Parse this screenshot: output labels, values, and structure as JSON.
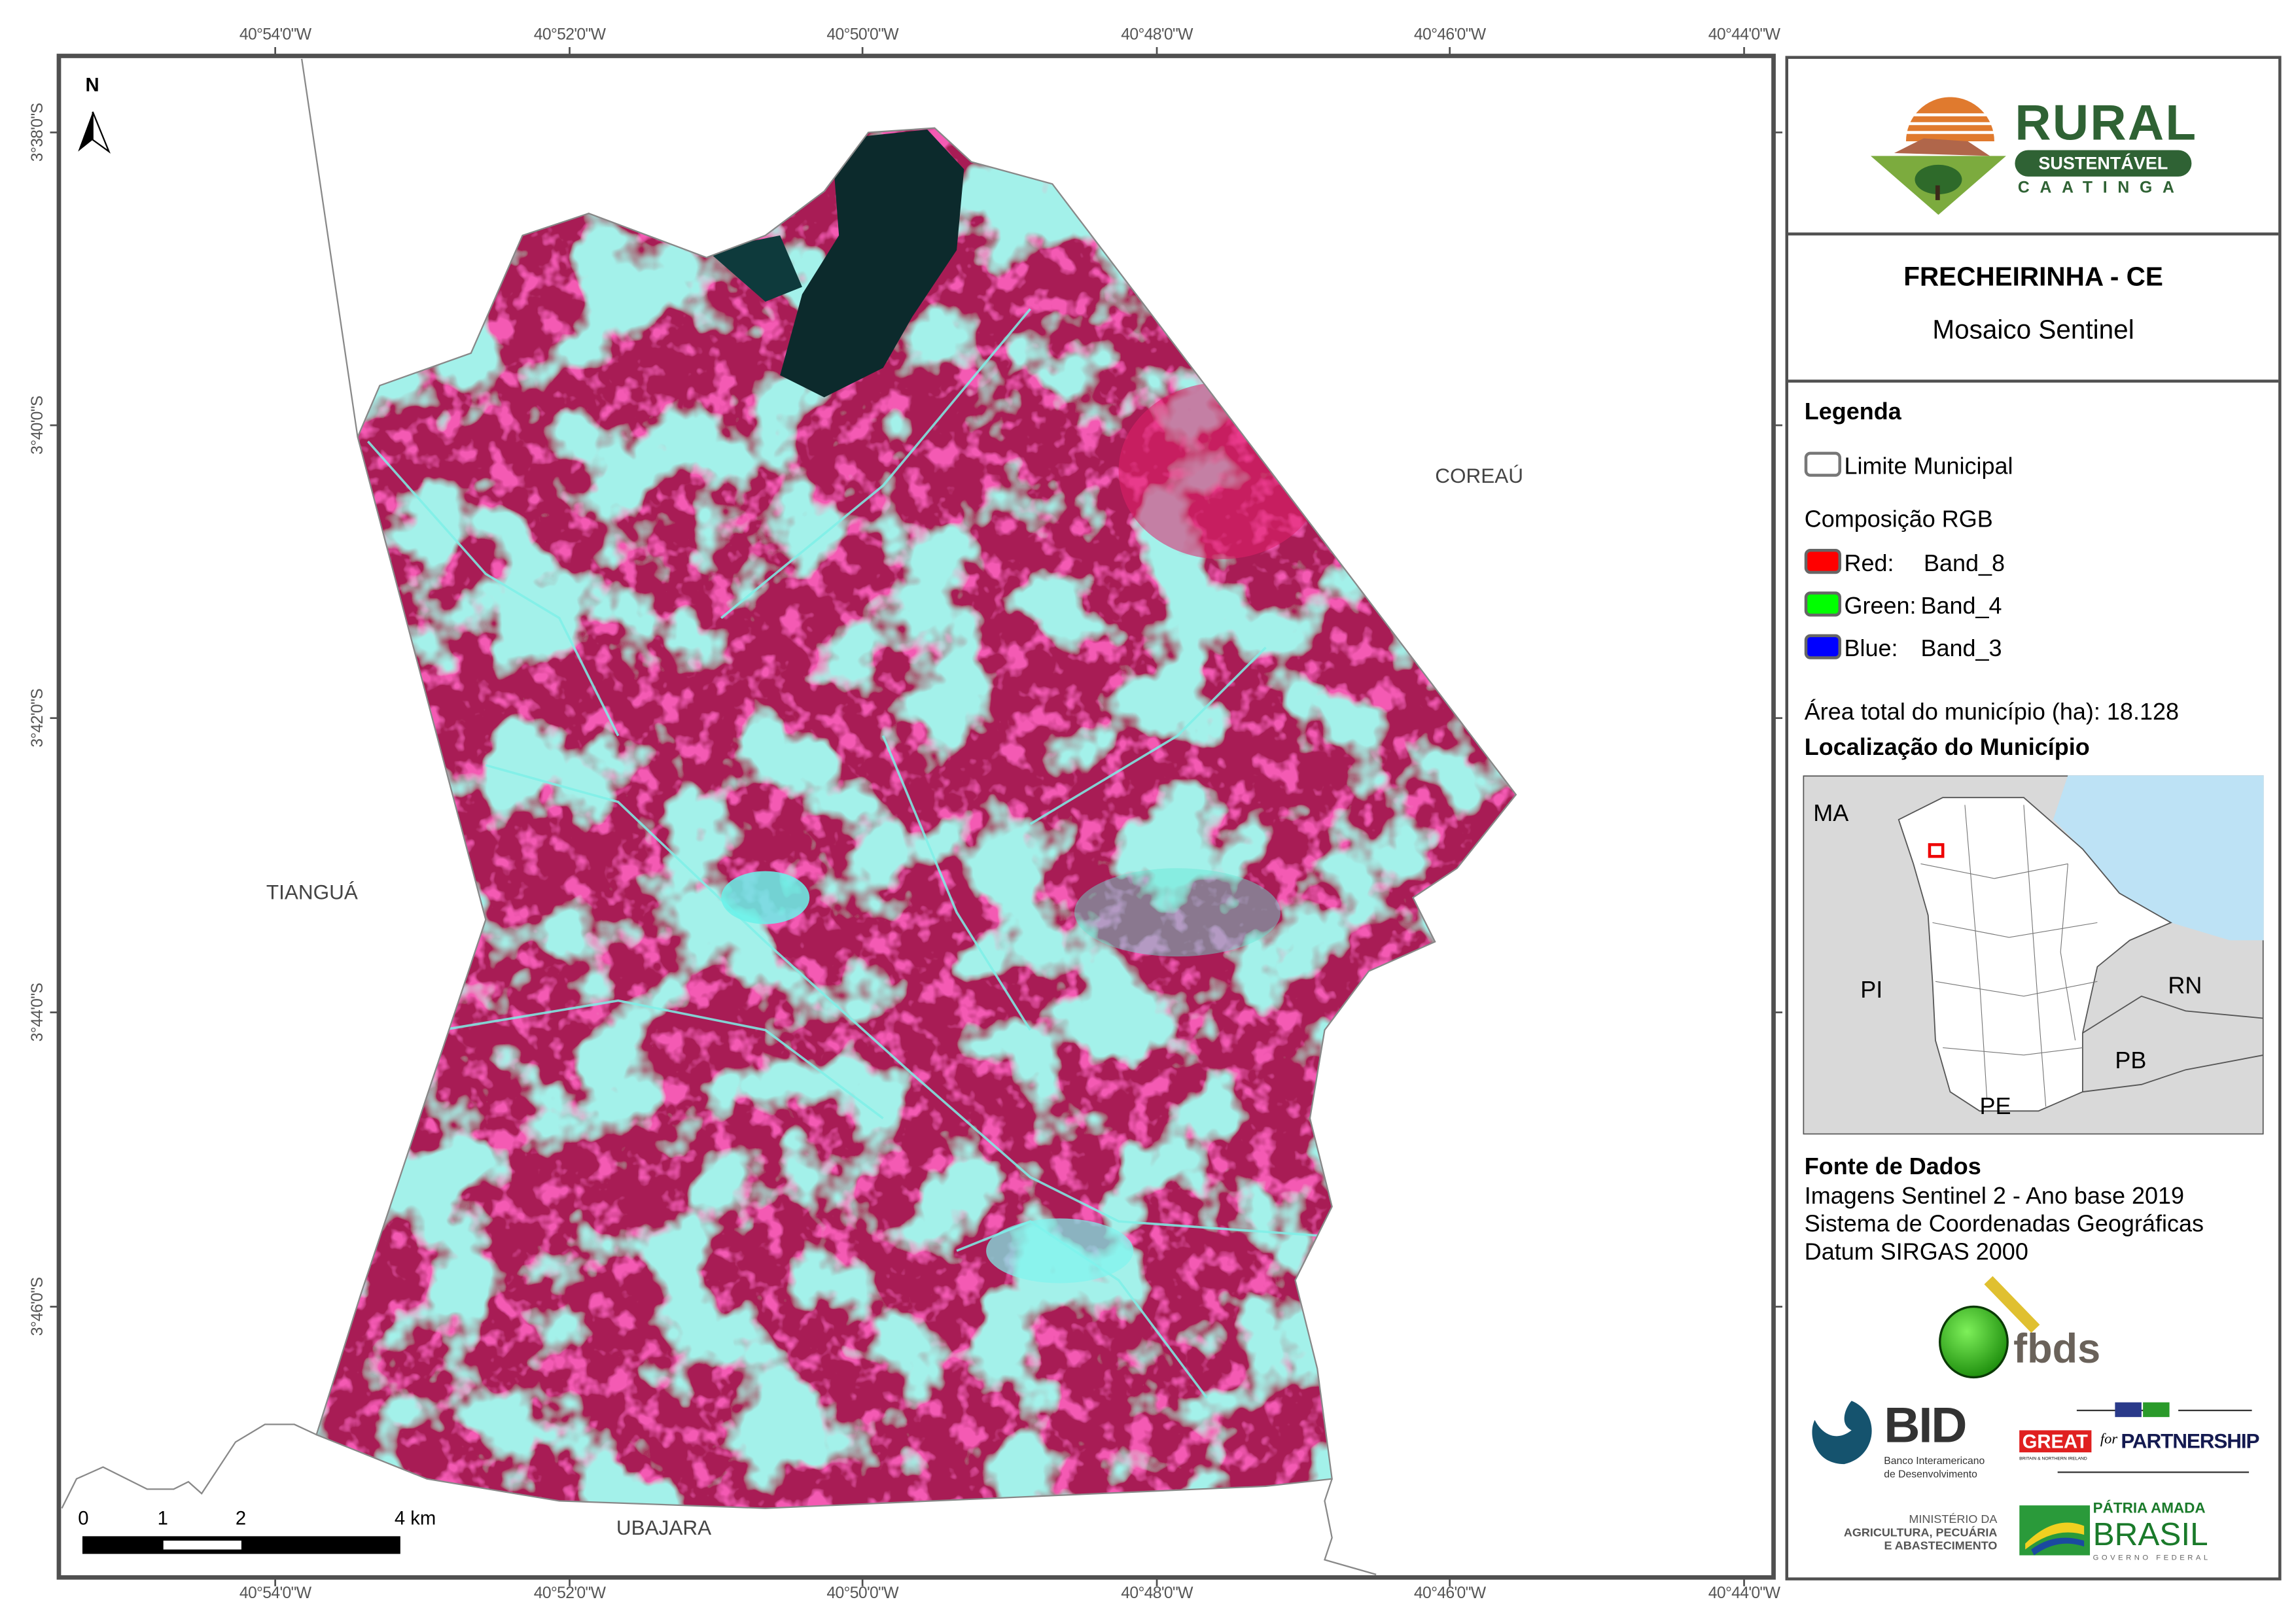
{
  "map": {
    "north_label": "N",
    "top_coords": [
      "40°54'0\"W",
      "40°52'0\"W",
      "40°50'0\"W",
      "40°48'0\"W",
      "40°46'0\"W",
      "40°44'0\"W"
    ],
    "bottom_coords": [
      "40°54'0\"W",
      "40°52'0\"W",
      "40°50'0\"W",
      "40°48'0\"W",
      "40°46'0\"W",
      "40°44'0\"W"
    ],
    "left_coords": [
      "3°38'0\"S",
      "3°40'0\"S",
      "3°42'0\"S",
      "3°44'0\"S",
      "3°46'0\"S"
    ],
    "neighbors": {
      "west": "TIANGUÁ",
      "east": "COREAÚ",
      "south": "UBAJARA"
    },
    "scale_bar": {
      "labels": [
        "0",
        "1",
        "2",
        "4 km"
      ]
    },
    "colors": {
      "vegetation": "#b8205c",
      "bare": "#5fe0d0",
      "water": "#0c2a2c",
      "frame": "#505050"
    }
  },
  "panel": {
    "logo": {
      "line1": "RURAL",
      "line2": "SUSTENTÁVEL",
      "line3": "CAATINGA"
    },
    "title": "FRECHEIRINHA - CE",
    "subtitle": "Mosaico Sentinel",
    "legend": {
      "heading": "Legenda",
      "boundary_label": "Limite Municipal",
      "rgb_heading": "Composição RGB",
      "bands": [
        {
          "channel": "Red:",
          "band": "Band_8",
          "color": "#ff0000"
        },
        {
          "channel": "Green:",
          "band": "Band_4",
          "color": "#00ff00"
        },
        {
          "channel": "Blue:",
          "band": "Band_3",
          "color": "#0000ff"
        }
      ]
    },
    "area_label": "Área total do município (ha):",
    "area_value": "18.128",
    "location_heading": "Localização do Município",
    "inset": {
      "labels": [
        "MA",
        "PI",
        "RN",
        "PB",
        "PE"
      ]
    },
    "sources": {
      "heading": "Fonte de Dados",
      "lines": [
        "Imagens Sentinel 2 - Ano base 2019",
        "Sistema de Coordenadas Geográficas",
        "Datum SIRGAS 2000"
      ]
    },
    "partners": {
      "fbds": "fbds",
      "bid": "BID",
      "bid_sub1": "Banco Interamericano",
      "bid_sub2": "de Desenvolvimento",
      "great": "GREAT",
      "great_for": "for",
      "great_partnership": "PARTNERSHIP",
      "great_sub": "BRITAIN & NORTHERN IRELAND",
      "ministry1": "MINISTÉRIO DA",
      "ministry2": "AGRICULTURA, PECUÁRIA",
      "ministry3": "E ABASTECIMENTO",
      "brasil1": "PÁTRIA AMADA",
      "brasil2": "BRASIL",
      "brasil3": "GOVERNO FEDERAL"
    }
  }
}
